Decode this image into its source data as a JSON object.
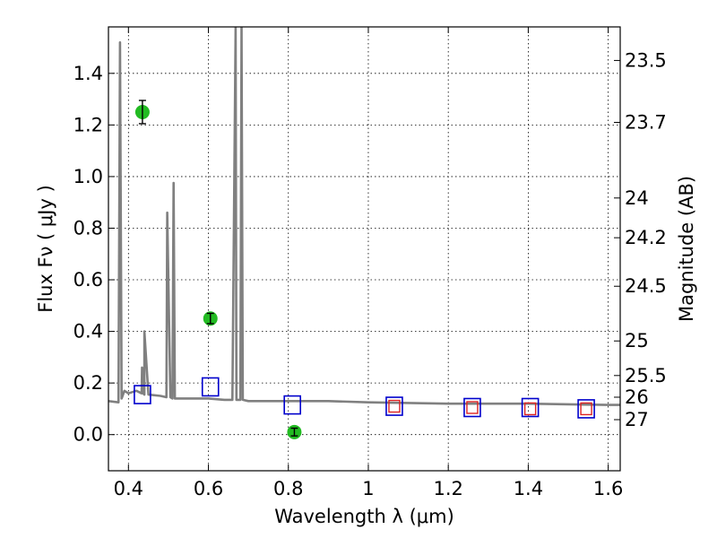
{
  "chart_data": {
    "type": "line",
    "xlabel": "Wavelength  λ (μm)",
    "ylabel": "Flux  Fν  ( μJy )",
    "y2label": "Magnitude (AB)",
    "xlim": [
      0.35,
      1.63
    ],
    "ylim": [
      -0.14,
      1.58
    ],
    "x_ticks": [
      0.4,
      0.6,
      0.8,
      1.0,
      1.2,
      1.4,
      1.6
    ],
    "x_tick_labels": [
      "0.4",
      "0.6",
      "0.8",
      "1",
      "1.2",
      "1.4",
      "1.6"
    ],
    "y_ticks": [
      0.0,
      0.2,
      0.4,
      0.6,
      0.8,
      1.0,
      1.2,
      1.4
    ],
    "y_tick_labels": [
      "0.0",
      "0.2",
      "0.4",
      "0.6",
      "0.8",
      "1.0",
      "1.2",
      "1.4"
    ],
    "y2_ticks": [
      {
        "label": "23.5",
        "flux": 1.45
      },
      {
        "label": "23.7",
        "flux": 1.21
      },
      {
        "label": "24",
        "flux": 0.917
      },
      {
        "label": "24.2",
        "flux": 0.763
      },
      {
        "label": "24.5",
        "flux": 0.575
      },
      {
        "label": "25",
        "flux": 0.363
      },
      {
        "label": "25.5",
        "flux": 0.229
      },
      {
        "label": "26",
        "flux": 0.145
      },
      {
        "label": "27",
        "flux": 0.058
      }
    ],
    "grid": true,
    "colors": {
      "model": "#808080",
      "photometry": "#22bb22",
      "model_filter": "#0000cc",
      "observed_filter": "#dd2222"
    },
    "series": [
      {
        "kind": "line",
        "x": [
          0.35,
          0.375,
          0.379,
          0.383,
          0.39,
          0.4,
          0.42,
          0.433,
          0.434,
          0.437,
          0.44,
          0.44,
          0.45,
          0.48,
          0.495,
          0.497,
          0.505,
          0.51,
          0.513,
          0.516,
          0.55,
          0.6,
          0.64,
          0.66,
          0.668,
          0.67,
          0.672,
          0.68,
          0.683,
          0.686,
          0.7,
          0.8,
          0.9,
          1.0,
          1.2,
          1.4,
          1.6,
          1.63
        ],
        "y": [
          0.13,
          0.125,
          1.52,
          0.14,
          0.17,
          0.16,
          0.17,
          0.16,
          0.26,
          0.16,
          0.155,
          0.4,
          0.155,
          0.15,
          0.145,
          0.86,
          0.145,
          0.14,
          0.975,
          0.14,
          0.14,
          0.14,
          0.135,
          0.135,
          1.58,
          0.135,
          0.135,
          0.135,
          1.58,
          0.135,
          0.13,
          0.13,
          0.13,
          0.125,
          0.12,
          0.12,
          0.115,
          0.115
        ]
      },
      {
        "kind": "points",
        "x": [
          0.435,
          0.605,
          0.815
        ],
        "y": [
          1.25,
          0.45,
          0.01
        ],
        "yerr": [
          0.045,
          0.02,
          0.015
        ]
      },
      {
        "kind": "squares",
        "x": [
          0.435,
          0.605,
          0.81,
          1.065,
          1.26,
          1.405,
          1.545
        ],
        "y": [
          0.155,
          0.185,
          0.115,
          0.11,
          0.105,
          0.105,
          0.1
        ]
      },
      {
        "kind": "squares",
        "x": [
          1.065,
          1.26,
          1.405,
          1.545
        ],
        "y": [
          0.11,
          0.105,
          0.1,
          0.1
        ]
      }
    ]
  }
}
